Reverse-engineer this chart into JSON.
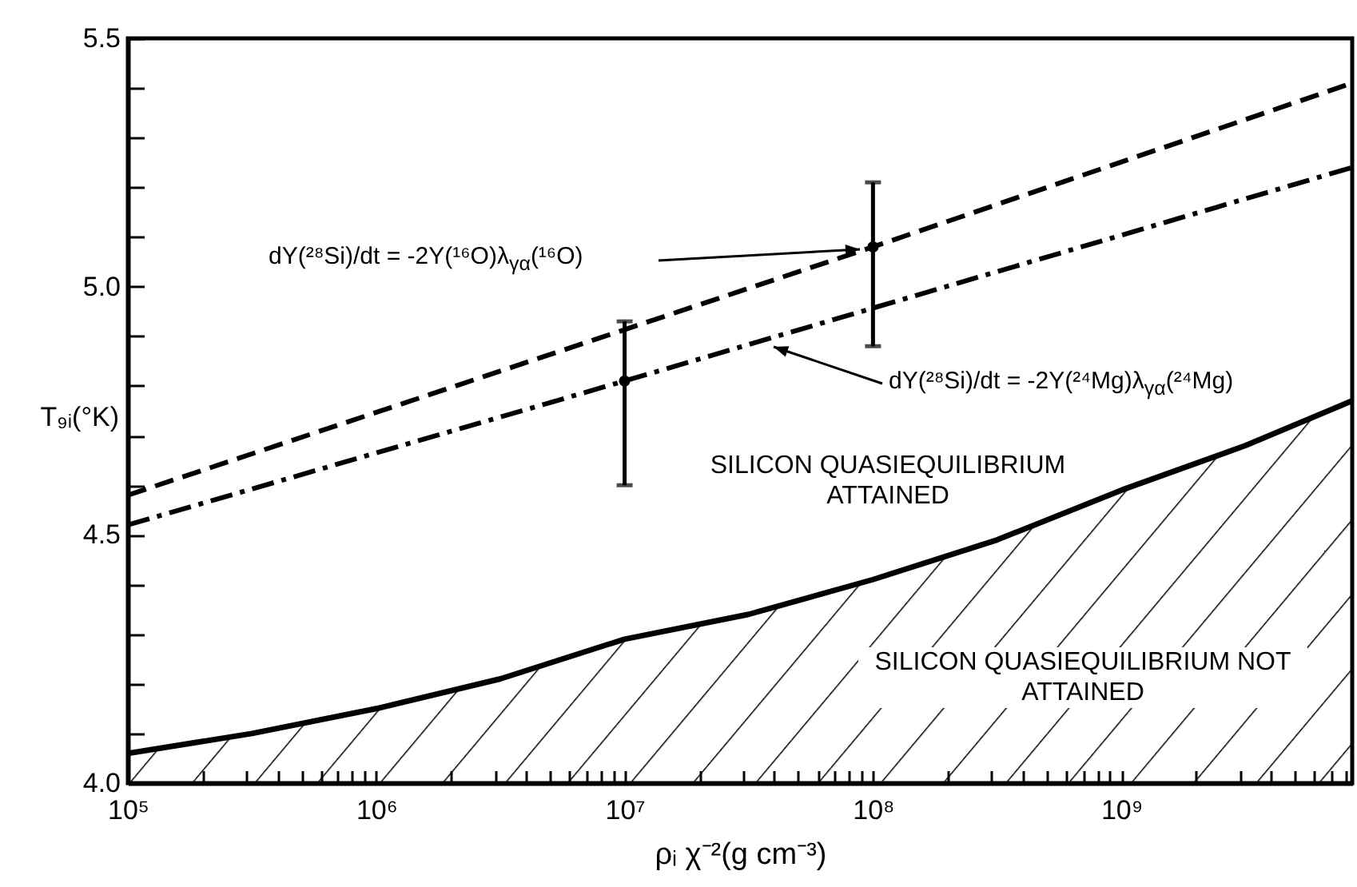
{
  "chart_data": {
    "type": "line",
    "xlabel": "ρᵢ χ⁻²(g cm⁻³)",
    "ylabel": "T₉ᵢ(°K)",
    "log": "x",
    "marker": "none",
    "xlim": [
      100000,
      8500000000
    ],
    "ylim": [
      4.0,
      5.5
    ],
    "xticks": [
      {
        "value": 100000,
        "label": "10⁵"
      },
      {
        "value": 200000,
        "label": null
      },
      {
        "value": 300000,
        "label": null
      },
      {
        "value": 400000,
        "label": null
      },
      {
        "value": 500000,
        "label": null
      },
      {
        "value": 600000,
        "label": null
      },
      {
        "value": 700000,
        "label": null
      },
      {
        "value": 800000,
        "label": null
      },
      {
        "value": 900000,
        "label": null
      },
      {
        "value": 1000000,
        "label": "10⁶"
      },
      {
        "value": 2000000,
        "label": null
      },
      {
        "value": 3000000,
        "label": null
      },
      {
        "value": 4000000,
        "label": null
      },
      {
        "value": 5000000,
        "label": null
      },
      {
        "value": 6000000,
        "label": null
      },
      {
        "value": 7000000,
        "label": null
      },
      {
        "value": 8000000,
        "label": null
      },
      {
        "value": 9000000,
        "label": null
      },
      {
        "value": 10000000,
        "label": "10⁷"
      },
      {
        "value": 20000000,
        "label": null
      },
      {
        "value": 30000000,
        "label": null
      },
      {
        "value": 40000000,
        "label": null
      },
      {
        "value": 50000000,
        "label": null
      },
      {
        "value": 60000000,
        "label": null
      },
      {
        "value": 70000000,
        "label": null
      },
      {
        "value": 80000000,
        "label": null
      },
      {
        "value": 90000000,
        "label": null
      },
      {
        "value": 100000000,
        "label": "10⁸"
      },
      {
        "value": 200000000,
        "label": null
      },
      {
        "value": 300000000,
        "label": null
      },
      {
        "value": 400000000,
        "label": null
      },
      {
        "value": 500000000,
        "label": null
      },
      {
        "value": 600000000,
        "label": null
      },
      {
        "value": 700000000,
        "label": null
      },
      {
        "value": 800000000,
        "label": null
      },
      {
        "value": 900000000,
        "label": null
      },
      {
        "value": 1000000000,
        "label": "10⁹"
      },
      {
        "value": 2000000000,
        "label": null
      },
      {
        "value": 3000000000,
        "label": null
      },
      {
        "value": 4000000000,
        "label": null
      },
      {
        "value": 5000000000,
        "label": null
      },
      {
        "value": 6000000000,
        "label": null
      },
      {
        "value": 7000000000,
        "label": null
      },
      {
        "value": 8000000000,
        "label": null
      }
    ],
    "yticks": [
      {
        "value": 4.0,
        "label": "4.0"
      },
      {
        "value": 4.1,
        "label": null
      },
      {
        "value": 4.2,
        "label": null
      },
      {
        "value": 4.3,
        "label": null
      },
      {
        "value": 4.4,
        "label": null
      },
      {
        "value": 4.5,
        "label": "4.5"
      },
      {
        "value": 4.6,
        "label": null
      },
      {
        "value": 4.7,
        "label": null
      },
      {
        "value": 4.8,
        "label": null
      },
      {
        "value": 4.9,
        "label": null
      },
      {
        "value": 5.0,
        "label": "5.0"
      },
      {
        "value": 5.1,
        "label": null
      },
      {
        "value": 5.2,
        "label": null
      },
      {
        "value": 5.3,
        "label": null
      },
      {
        "value": 5.4,
        "label": null
      },
      {
        "value": 5.5,
        "label": "5.5"
      }
    ],
    "series": [
      {
        "color": "#000000",
        "line_style": "dashed",
        "x": [
          100000,
          100000000,
          8500000000
        ],
        "values": [
          4.58,
          5.08,
          5.41
        ],
        "errors": [
          null,
          [
            4.88,
            5.21
          ],
          null
        ]
      },
      {
        "color": "#000000",
        "line_style": "dashdot",
        "x": [
          100000,
          10000000,
          8500000000
        ],
        "values": [
          4.52,
          4.81,
          5.24
        ],
        "errors": [
          null,
          [
            4.6,
            4.93
          ],
          null
        ]
      },
      {
        "type": "area",
        "color": "#000000",
        "line_style": "solid",
        "x": [
          100000,
          316228,
          1000000,
          3162278,
          10000000,
          31622777,
          100000000,
          316227766,
          1000000000,
          3162277660,
          8500000000
        ],
        "values": [
          4.06,
          4.1,
          4.15,
          4.21,
          4.29,
          4.34,
          4.41,
          4.49,
          4.59,
          4.68,
          4.77
        ]
      }
    ],
    "annotations": [
      "dY(²⁸Si)/dt = -2Y(¹⁶O)λ$_{γα}$(¹⁶O)",
      "dY(²⁸Si)/dt = -2Y(²⁴Mg)λ$_{γα}$(²⁴Mg)",
      "SILICON QUASIEQUILIBRIUM ATTAINED",
      "SILICON QUASIEQUILIBRIUM NOT ATTAINED"
    ]
  }
}
